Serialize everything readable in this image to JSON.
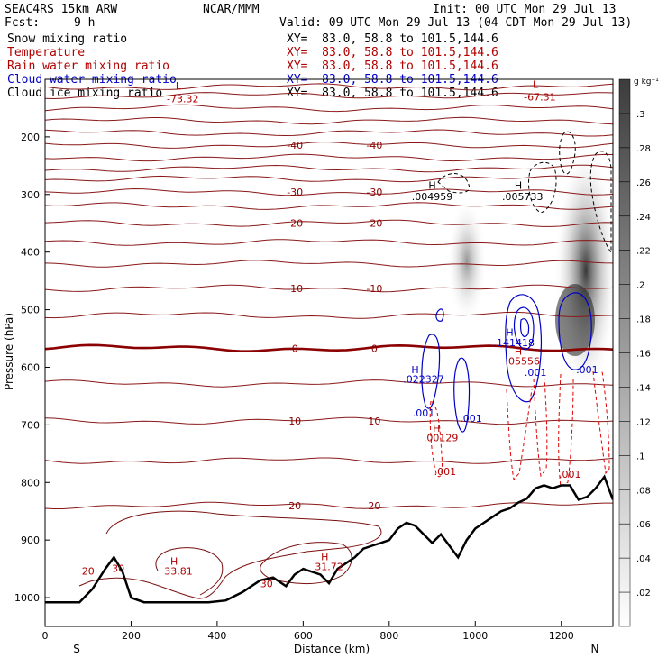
{
  "header": {
    "model": "SEAC4RS 15km ARW",
    "org": "NCAR/MMM",
    "init": "Init: 00 UTC Mon 29 Jul 13",
    "fcst_label": "Fcst:",
    "fcst_value": "9 h",
    "valid": "Valid: 09 UTC Mon 29 Jul 13 (04 CDT Mon 29 Jul 13)"
  },
  "fields": [
    {
      "name": "Snow mixing ratio",
      "xy": "XY=  83.0, 58.8 to 101.5,144.6",
      "color": "#000000"
    },
    {
      "name": "Temperature",
      "xy": "XY=  83.0, 58.8 to 101.5,144.6",
      "color": "#b00000"
    },
    {
      "name": "Rain water mixing ratio",
      "xy": "XY=  83.0, 58.8 to 101.5,144.6",
      "color": "#b00000"
    },
    {
      "name": "Cloud water mixing ratio",
      "xy": "XY=  83.0, 58.8 to 101.5,144.6",
      "color": "#0000c8"
    },
    {
      "name": "Cloud ice mixing ratio",
      "xy": "XY=  83.0, 58.8 to 101.5,144.6",
      "color": "#000000"
    }
  ],
  "chart_data": {
    "type": "cross-section",
    "xlabel": "Distance (km)",
    "ylabel": "Pressure (hPa)",
    "xlim": [
      0,
      1320
    ],
    "ylim": [
      1050,
      100
    ],
    "x_ticks": [
      0,
      200,
      400,
      600,
      800,
      1000,
      1200
    ],
    "y_ticks": [
      200,
      300,
      400,
      500,
      600,
      700,
      800,
      900,
      1000
    ],
    "x_end_labels": {
      "left": "S",
      "right": "N"
    },
    "colorbar": {
      "units": "g kg⁻¹",
      "ticks": [
        ".02",
        ".04",
        ".06",
        ".08",
        ".1",
        ".12",
        ".14",
        ".16",
        ".18",
        ".2",
        ".22",
        ".24",
        ".26",
        ".28",
        ".3"
      ]
    },
    "temperature_contours": [
      {
        "p": 113,
        "label": null
      },
      {
        "p": 128,
        "label": null
      },
      {
        "p": 150,
        "label": null
      },
      {
        "p": 172,
        "label": null
      },
      {
        "p": 193,
        "label": null
      },
      {
        "p": 214,
        "label": "-40"
      },
      {
        "p": 236,
        "label": null
      },
      {
        "p": 255,
        "label": null
      },
      {
        "p": 273,
        "label": null
      },
      {
        "p": 296,
        "label": "-30"
      },
      {
        "p": 320,
        "label": null
      },
      {
        "p": 350,
        "label": "-20"
      },
      {
        "p": 383,
        "label": null
      },
      {
        "p": 420,
        "label": null
      },
      {
        "p": 463,
        "label": "-10"
      },
      {
        "p": 510,
        "label": null
      },
      {
        "p": 567,
        "label": "0",
        "bold": true
      },
      {
        "p": 628,
        "label": null
      },
      {
        "p": 693,
        "label": "10"
      },
      {
        "p": 762,
        "label": null
      },
      {
        "p": 840,
        "label": "20"
      }
    ],
    "labels": [
      {
        "text": "L",
        "x": 310,
        "p": 117,
        "color": "#b00000"
      },
      {
        "text": "-73.32",
        "x": 320,
        "p": 140,
        "color": "#b00000"
      },
      {
        "text": "L",
        "x": 1140,
        "p": 115,
        "color": "#b00000"
      },
      {
        "text": "-67.31",
        "x": 1150,
        "p": 137,
        "color": "#b00000"
      },
      {
        "text": "H",
        "x": 900,
        "p": 290,
        "color": "#000000"
      },
      {
        "text": ".004959",
        "x": 900,
        "p": 310,
        "color": "#000000"
      },
      {
        "text": "H",
        "x": 1100,
        "p": 290,
        "color": "#000000"
      },
      {
        "text": ".005733",
        "x": 1110,
        "p": 310,
        "color": "#000000"
      },
      {
        "text": "H",
        "x": 1080,
        "p": 545,
        "color": "#0000c8"
      },
      {
        "text": ".141418",
        "x": 1090,
        "p": 563,
        "color": "#0000c8"
      },
      {
        "text": "H",
        "x": 1100,
        "p": 578,
        "color": "#b00000"
      },
      {
        "text": ".05556",
        "x": 1110,
        "p": 595,
        "color": "#b00000"
      },
      {
        "text": ".001",
        "x": 1140,
        "p": 615,
        "color": "#0000c8"
      },
      {
        "text": ".001",
        "x": 1260,
        "p": 610,
        "color": "#0000c8"
      },
      {
        "text": "H",
        "x": 860,
        "p": 610,
        "color": "#0000c8"
      },
      {
        "text": ".022327",
        "x": 880,
        "p": 627,
        "color": "#0000c8"
      },
      {
        "text": ".001",
        "x": 880,
        "p": 685,
        "color": "#0000c8"
      },
      {
        "text": ".001",
        "x": 990,
        "p": 695,
        "color": "#0000c8"
      },
      {
        "text": "H",
        "x": 910,
        "p": 712,
        "color": "#b00000"
      },
      {
        "text": ".00129",
        "x": 920,
        "p": 728,
        "color": "#b00000"
      },
      {
        "text": ".001",
        "x": 930,
        "p": 787,
        "color": "#b00000"
      },
      {
        "text": ".001",
        "x": 1220,
        "p": 792,
        "color": "#b00000"
      },
      {
        "text": "H",
        "x": 300,
        "p": 943,
        "color": "#b00000"
      },
      {
        "text": "33.81",
        "x": 310,
        "p": 960,
        "color": "#b00000"
      },
      {
        "text": "H",
        "x": 650,
        "p": 935,
        "color": "#b00000"
      },
      {
        "text": "31.72",
        "x": 660,
        "p": 952,
        "color": "#b00000"
      },
      {
        "text": "20",
        "x": 100,
        "p": 960,
        "color": "#b00000"
      },
      {
        "text": "30",
        "x": 170,
        "p": 955,
        "color": "#b00000"
      },
      {
        "text": "30",
        "x": 515,
        "p": 982,
        "color": "#b00000"
      }
    ],
    "terrain": [
      [
        0,
        1008
      ],
      [
        80,
        1008
      ],
      [
        110,
        985
      ],
      [
        140,
        950
      ],
      [
        160,
        930
      ],
      [
        180,
        955
      ],
      [
        200,
        1000
      ],
      [
        230,
        1008
      ],
      [
        300,
        1008
      ],
      [
        380,
        1008
      ],
      [
        420,
        1005
      ],
      [
        460,
        990
      ],
      [
        500,
        970
      ],
      [
        530,
        965
      ],
      [
        560,
        980
      ],
      [
        580,
        960
      ],
      [
        600,
        950
      ],
      [
        620,
        955
      ],
      [
        640,
        960
      ],
      [
        660,
        975
      ],
      [
        680,
        950
      ],
      [
        700,
        940
      ],
      [
        720,
        930
      ],
      [
        740,
        915
      ],
      [
        760,
        910
      ],
      [
        780,
        905
      ],
      [
        800,
        900
      ],
      [
        820,
        880
      ],
      [
        840,
        870
      ],
      [
        860,
        875
      ],
      [
        880,
        890
      ],
      [
        900,
        905
      ],
      [
        920,
        890
      ],
      [
        940,
        910
      ],
      [
        960,
        930
      ],
      [
        980,
        900
      ],
      [
        1000,
        880
      ],
      [
        1020,
        870
      ],
      [
        1040,
        860
      ],
      [
        1060,
        850
      ],
      [
        1080,
        845
      ],
      [
        1100,
        835
      ],
      [
        1120,
        828
      ],
      [
        1140,
        810
      ],
      [
        1160,
        805
      ],
      [
        1180,
        810
      ],
      [
        1200,
        805
      ],
      [
        1220,
        805
      ],
      [
        1240,
        830
      ],
      [
        1260,
        825
      ],
      [
        1280,
        810
      ],
      [
        1300,
        790
      ],
      [
        1320,
        830
      ]
    ]
  }
}
